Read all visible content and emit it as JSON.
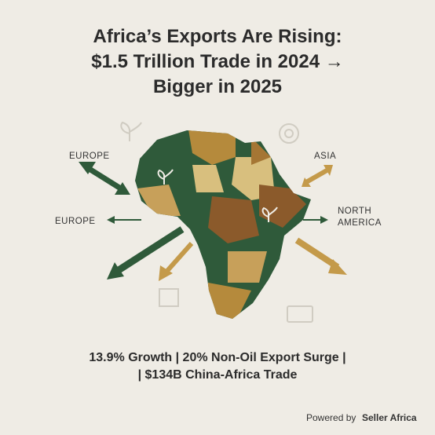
{
  "title": {
    "lines": [
      "Africa’s Exports Are Rising:",
      "$1.5 Trillion Trade in 2024 →",
      "Bigger in 2025"
    ]
  },
  "destinations": [
    {
      "lines": [
        "EUROPE"
      ]
    },
    {
      "lines": [
        "ASIA"
      ]
    },
    {
      "lines": [
        "EUROPE"
      ]
    },
    {
      "lines": [
        "NORTH",
        "AMERICA"
      ]
    }
  ],
  "stats": {
    "lines": [
      "13.9% Growth | 20% Non-Oil Export Surge |",
      "| $134B China-Africa Trade"
    ]
  },
  "footer": {
    "prefix": "Powered by",
    "brand": "Seller Africa"
  }
}
